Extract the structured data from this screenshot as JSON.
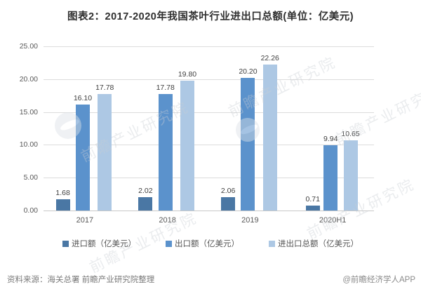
{
  "title": "图表2：2017-2020年我国茶叶行业进出口总额(单位：亿美元)",
  "chart_data": {
    "type": "bar",
    "categories": [
      "2017",
      "2018",
      "2019",
      "2020H1"
    ],
    "series": [
      {
        "name": "进口额（亿美元）",
        "color": "#4a77a4",
        "values": [
          1.68,
          2.02,
          2.06,
          0.71
        ]
      },
      {
        "name": "出口额（亿美元）",
        "color": "#5b92cc",
        "values": [
          16.1,
          17.78,
          20.2,
          9.94
        ]
      },
      {
        "name": "进出口总额（亿美元）",
        "color": "#adc8e4",
        "values": [
          17.78,
          19.8,
          22.26,
          10.65
        ]
      }
    ],
    "ylim": [
      0,
      25
    ],
    "yticks": [
      "25.00",
      "20.00",
      "15.00",
      "10.00",
      "5.00",
      "0.00"
    ],
    "grid": true,
    "legend_position": "bottom",
    "value_labels": true
  },
  "footer": {
    "source": "资料来源：海关总署 前瞻产业研究院整理",
    "credit": "@前瞻经济学人APP"
  },
  "watermark": {
    "text": "前瞻产业研究院",
    "logo": "globe-circle-logo"
  }
}
